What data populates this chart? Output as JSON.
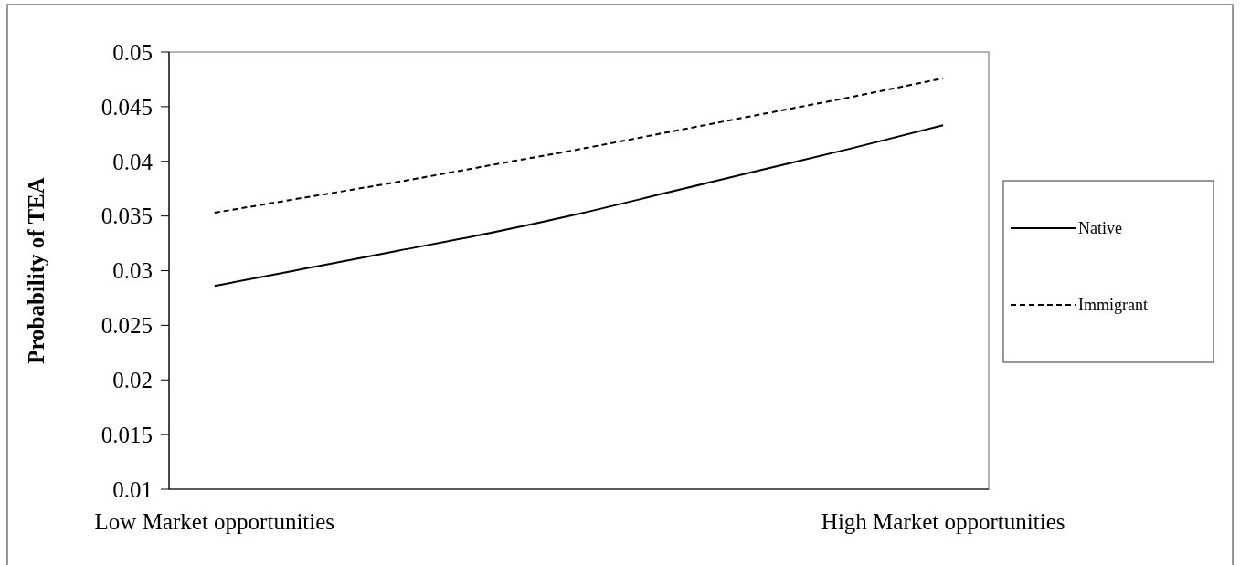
{
  "chart_data": {
    "type": "line",
    "ylabel": "Probability of TEA",
    "categories": [
      "Low Market opportunities",
      null,
      null,
      null,
      null,
      null,
      null,
      null,
      "High Market opportunities"
    ],
    "series": [
      {
        "name": "Native",
        "color": "#000000",
        "line_style": "solid",
        "values": [
          0.0286,
          0.0302,
          0.0318,
          0.0334,
          0.0352,
          0.0372,
          0.0392,
          0.0412,
          0.0433
        ]
      },
      {
        "name": "Immigrant",
        "color": "#000000",
        "line_style": "dashed",
        "values": [
          0.0353,
          0.0367,
          0.0381,
          0.0396,
          0.0411,
          0.0427,
          0.0443,
          0.0459,
          0.0476
        ]
      }
    ],
    "ylim": [
      0.01,
      0.05
    ],
    "yticks": [
      0.01,
      0.015,
      0.02,
      0.025,
      0.03,
      0.035,
      0.04,
      0.045,
      0.05
    ],
    "grid": false,
    "legend": "right",
    "marker": "none"
  }
}
